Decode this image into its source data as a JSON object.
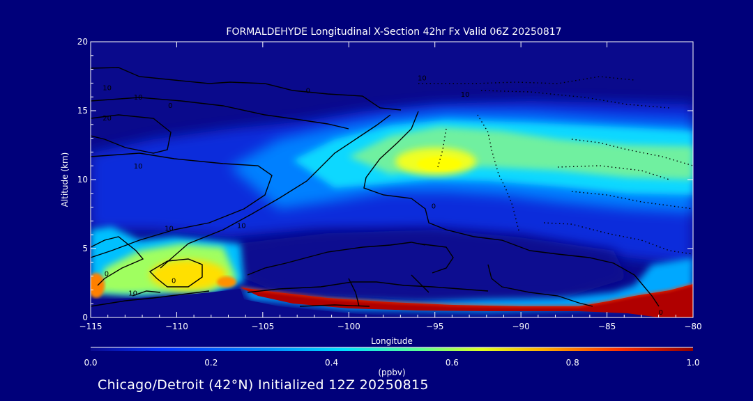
{
  "chart_data": {
    "type": "heatmap",
    "title": "FORMALDEHYDE Longitudinal X-Section 42hr  Fx Valid 06Z 20250817",
    "xlabel": "Longitude",
    "ylabel": "Altitude (km)",
    "xlim": [
      -115,
      -80
    ],
    "ylim": [
      0,
      20
    ],
    "x_ticks": [
      -115,
      -110,
      -105,
      -100,
      -95,
      -90,
      -85,
      -80
    ],
    "x_tick_labels": [
      "−115",
      "−110",
      "−105",
      "−100",
      "−95",
      "−90",
      "−85",
      "−80"
    ],
    "y_ticks": [
      0,
      5,
      10,
      15,
      20
    ],
    "y_tick_labels": [
      "0",
      "5",
      "10",
      "15",
      "20"
    ],
    "colorbar": {
      "label": "(ppbv)",
      "range": [
        0.0,
        1.0
      ],
      "ticks": [
        0.0,
        0.2,
        0.4,
        0.6,
        0.8,
        1.0
      ],
      "tick_labels": [
        "0.0",
        "0.2",
        "0.4",
        "0.6",
        "0.8",
        "1.0"
      ]
    },
    "regions": [
      {
        "name": "upper-tropospheric-plume-west",
        "lon": -100,
        "alt": 11.5,
        "value": 0.35
      },
      {
        "name": "upper-tropospheric-plume-core",
        "lon": -94,
        "alt": 11.0,
        "value": 0.62
      },
      {
        "name": "upper-tropospheric-plume-east",
        "lon": -84,
        "alt": 11.0,
        "value": 0.4
      },
      {
        "name": "western-boundary-layer",
        "lon": -109,
        "alt": 3.0,
        "value": 0.6
      },
      {
        "name": "surface-layer-central",
        "lon": -95,
        "alt": 0.9,
        "value": 1.0
      },
      {
        "name": "surface-layer-east",
        "lon": -81,
        "alt": 1.2,
        "value": 1.0
      }
    ],
    "contour_labels": [
      "10",
      "10",
      "0",
      "10",
      "20",
      "10",
      "0",
      "10",
      "10",
      "0",
      "0",
      "0",
      "10",
      "10",
      "0"
    ]
  },
  "footer": {
    "caption": "Chicago/Detroit (42°N) Initialized 12Z 20250815"
  }
}
